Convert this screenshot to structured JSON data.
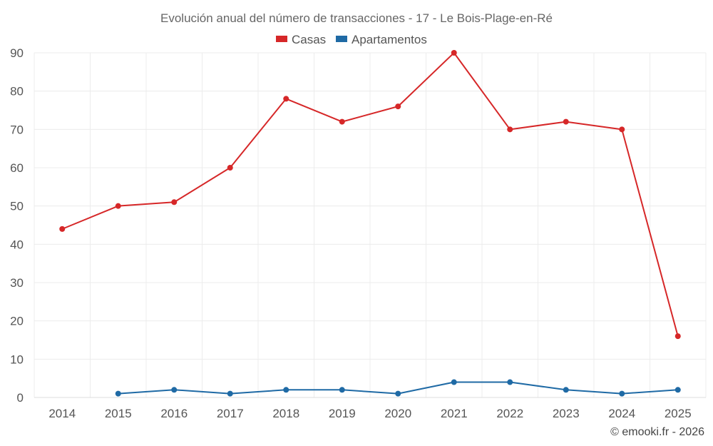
{
  "chart_data": {
    "type": "line",
    "title": "Evolución anual del número de transacciones - 17 - Le Bois-Plage-en-Ré",
    "categories": [
      "2014",
      "2015",
      "2016",
      "2017",
      "2018",
      "2019",
      "2020",
      "2021",
      "2022",
      "2023",
      "2024",
      "2025"
    ],
    "series": [
      {
        "name": "Casas",
        "color": "#d62728",
        "values": [
          44,
          50,
          51,
          60,
          78,
          72,
          76,
          90,
          70,
          72,
          70,
          16
        ]
      },
      {
        "name": "Apartamentos",
        "color": "#1f6aa5",
        "values": [
          null,
          1,
          2,
          1,
          2,
          2,
          1,
          4,
          4,
          2,
          1,
          2
        ]
      }
    ],
    "ylim": [
      0,
      90
    ],
    "yticks": [
      "0",
      "10",
      "20",
      "30",
      "40",
      "50",
      "60",
      "70",
      "80",
      "90"
    ],
    "grid": true,
    "legend_position": "top-center",
    "xlabel": "",
    "ylabel": ""
  },
  "credit": "© emooki.fr - 2026"
}
